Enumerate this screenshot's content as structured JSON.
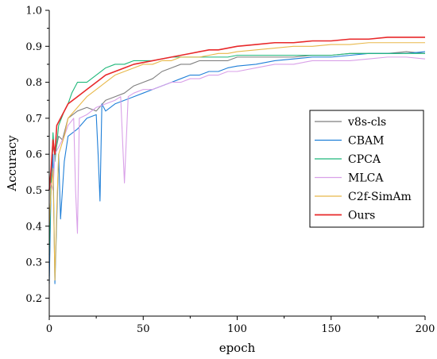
{
  "chart_data": {
    "type": "line",
    "title": "",
    "xlabel": "epoch",
    "ylabel": "Accuracy",
    "xlim": [
      0,
      200
    ],
    "ylim": [
      0.15,
      1.0
    ],
    "xticks": [
      0,
      50,
      100,
      150,
      200
    ],
    "yticks": [
      0.2,
      0.3,
      0.4,
      0.5,
      0.6,
      0.7,
      0.8,
      0.9,
      1.0
    ],
    "xtick_labels": [
      "0",
      "50",
      "100",
      "150",
      "200"
    ],
    "ytick_labels": [
      "0.2",
      "0.3",
      "0.4",
      "0.5",
      "0.6",
      "0.7",
      "0.8",
      "0.9",
      "1.0"
    ],
    "grid": false,
    "legend_position": "center-right",
    "series": [
      {
        "name": "v8s-cls",
        "color": "#7f7f7f",
        "points": [
          [
            0,
            0.26
          ],
          [
            1,
            0.55
          ],
          [
            2,
            0.62
          ],
          [
            3,
            0.6
          ],
          [
            5,
            0.65
          ],
          [
            7,
            0.64
          ],
          [
            10,
            0.7
          ],
          [
            15,
            0.72
          ],
          [
            20,
            0.73
          ],
          [
            25,
            0.72
          ],
          [
            30,
            0.75
          ],
          [
            35,
            0.76
          ],
          [
            40,
            0.77
          ],
          [
            45,
            0.79
          ],
          [
            50,
            0.8
          ],
          [
            55,
            0.81
          ],
          [
            60,
            0.83
          ],
          [
            65,
            0.84
          ],
          [
            70,
            0.85
          ],
          [
            75,
            0.85
          ],
          [
            80,
            0.86
          ],
          [
            85,
            0.86
          ],
          [
            90,
            0.86
          ],
          [
            95,
            0.86
          ],
          [
            100,
            0.87
          ],
          [
            110,
            0.87
          ],
          [
            120,
            0.87
          ],
          [
            130,
            0.87
          ],
          [
            140,
            0.875
          ],
          [
            150,
            0.875
          ],
          [
            160,
            0.88
          ],
          [
            170,
            0.88
          ],
          [
            180,
            0.88
          ],
          [
            190,
            0.885
          ],
          [
            200,
            0.88
          ]
        ]
      },
      {
        "name": "CBAM",
        "color": "#1f7fd8",
        "points": [
          [
            0,
            0.24
          ],
          [
            1,
            0.52
          ],
          [
            2,
            0.6
          ],
          [
            3,
            0.24
          ],
          [
            5,
            0.6
          ],
          [
            6,
            0.42
          ],
          [
            8,
            0.58
          ],
          [
            10,
            0.65
          ],
          [
            15,
            0.67
          ],
          [
            20,
            0.7
          ],
          [
            25,
            0.71
          ],
          [
            26,
            0.6
          ],
          [
            27,
            0.47
          ],
          [
            28,
            0.74
          ],
          [
            30,
            0.72
          ],
          [
            35,
            0.74
          ],
          [
            40,
            0.75
          ],
          [
            45,
            0.76
          ],
          [
            50,
            0.77
          ],
          [
            55,
            0.78
          ],
          [
            60,
            0.79
          ],
          [
            65,
            0.8
          ],
          [
            70,
            0.81
          ],
          [
            75,
            0.82
          ],
          [
            80,
            0.82
          ],
          [
            85,
            0.83
          ],
          [
            90,
            0.83
          ],
          [
            95,
            0.84
          ],
          [
            100,
            0.845
          ],
          [
            110,
            0.85
          ],
          [
            120,
            0.86
          ],
          [
            130,
            0.865
          ],
          [
            140,
            0.87
          ],
          [
            150,
            0.87
          ],
          [
            160,
            0.875
          ],
          [
            170,
            0.88
          ],
          [
            180,
            0.88
          ],
          [
            190,
            0.88
          ],
          [
            200,
            0.885
          ]
        ]
      },
      {
        "name": "CPCA",
        "color": "#1fb87a",
        "points": [
          [
            0,
            0.32
          ],
          [
            1,
            0.54
          ],
          [
            2,
            0.66
          ],
          [
            3,
            0.58
          ],
          [
            5,
            0.68
          ],
          [
            8,
            0.72
          ],
          [
            10,
            0.74
          ],
          [
            12,
            0.77
          ],
          [
            15,
            0.8
          ],
          [
            20,
            0.8
          ],
          [
            25,
            0.82
          ],
          [
            30,
            0.84
          ],
          [
            35,
            0.85
          ],
          [
            40,
            0.85
          ],
          [
            45,
            0.86
          ],
          [
            50,
            0.86
          ],
          [
            55,
            0.86
          ],
          [
            60,
            0.865
          ],
          [
            65,
            0.87
          ],
          [
            70,
            0.87
          ],
          [
            75,
            0.87
          ],
          [
            80,
            0.87
          ],
          [
            85,
            0.87
          ],
          [
            90,
            0.87
          ],
          [
            95,
            0.87
          ],
          [
            100,
            0.875
          ],
          [
            110,
            0.875
          ],
          [
            120,
            0.875
          ],
          [
            130,
            0.875
          ],
          [
            140,
            0.875
          ],
          [
            150,
            0.875
          ],
          [
            160,
            0.88
          ],
          [
            170,
            0.88
          ],
          [
            180,
            0.88
          ],
          [
            190,
            0.88
          ],
          [
            200,
            0.88
          ]
        ]
      },
      {
        "name": "MLCA",
        "color": "#d9a0e8",
        "points": [
          [
            0,
            0.5
          ],
          [
            1,
            0.52
          ],
          [
            2,
            0.5
          ],
          [
            3,
            0.6
          ],
          [
            5,
            0.62
          ],
          [
            8,
            0.65
          ],
          [
            10,
            0.68
          ],
          [
            13,
            0.7
          ],
          [
            14,
            0.5
          ],
          [
            15,
            0.38
          ],
          [
            16,
            0.7
          ],
          [
            20,
            0.71
          ],
          [
            25,
            0.73
          ],
          [
            30,
            0.74
          ],
          [
            35,
            0.75
          ],
          [
            38,
            0.76
          ],
          [
            40,
            0.52
          ],
          [
            42,
            0.76
          ],
          [
            45,
            0.77
          ],
          [
            50,
            0.78
          ],
          [
            55,
            0.78
          ],
          [
            60,
            0.79
          ],
          [
            65,
            0.8
          ],
          [
            70,
            0.8
          ],
          [
            75,
            0.81
          ],
          [
            80,
            0.81
          ],
          [
            85,
            0.82
          ],
          [
            90,
            0.82
          ],
          [
            95,
            0.83
          ],
          [
            100,
            0.83
          ],
          [
            110,
            0.84
          ],
          [
            120,
            0.85
          ],
          [
            130,
            0.85
          ],
          [
            140,
            0.86
          ],
          [
            150,
            0.86
          ],
          [
            160,
            0.86
          ],
          [
            170,
            0.865
          ],
          [
            180,
            0.87
          ],
          [
            190,
            0.87
          ],
          [
            200,
            0.865
          ]
        ]
      },
      {
        "name": "C2f-SimAm",
        "color": "#e8b84a",
        "points": [
          [
            0,
            0.4
          ],
          [
            1,
            0.5
          ],
          [
            2,
            0.56
          ],
          [
            3,
            0.25
          ],
          [
            4,
            0.45
          ],
          [
            5,
            0.6
          ],
          [
            8,
            0.65
          ],
          [
            10,
            0.7
          ],
          [
            15,
            0.73
          ],
          [
            20,
            0.76
          ],
          [
            25,
            0.78
          ],
          [
            30,
            0.8
          ],
          [
            35,
            0.82
          ],
          [
            40,
            0.83
          ],
          [
            45,
            0.84
          ],
          [
            50,
            0.85
          ],
          [
            55,
            0.85
          ],
          [
            60,
            0.86
          ],
          [
            65,
            0.86
          ],
          [
            70,
            0.87
          ],
          [
            75,
            0.87
          ],
          [
            80,
            0.87
          ],
          [
            85,
            0.875
          ],
          [
            90,
            0.88
          ],
          [
            95,
            0.88
          ],
          [
            100,
            0.885
          ],
          [
            110,
            0.89
          ],
          [
            120,
            0.895
          ],
          [
            130,
            0.9
          ],
          [
            140,
            0.9
          ],
          [
            150,
            0.905
          ],
          [
            160,
            0.905
          ],
          [
            170,
            0.91
          ],
          [
            180,
            0.91
          ],
          [
            190,
            0.91
          ],
          [
            200,
            0.91
          ]
        ]
      },
      {
        "name": "Ours",
        "color": "#e8282a",
        "points": [
          [
            0,
            0.5
          ],
          [
            1,
            0.56
          ],
          [
            2,
            0.64
          ],
          [
            3,
            0.6
          ],
          [
            4,
            0.68
          ],
          [
            5,
            0.69
          ],
          [
            8,
            0.72
          ],
          [
            10,
            0.74
          ],
          [
            15,
            0.76
          ],
          [
            20,
            0.78
          ],
          [
            25,
            0.8
          ],
          [
            30,
            0.82
          ],
          [
            35,
            0.83
          ],
          [
            40,
            0.84
          ],
          [
            45,
            0.85
          ],
          [
            50,
            0.855
          ],
          [
            55,
            0.86
          ],
          [
            60,
            0.865
          ],
          [
            65,
            0.87
          ],
          [
            70,
            0.875
          ],
          [
            75,
            0.88
          ],
          [
            80,
            0.885
          ],
          [
            85,
            0.89
          ],
          [
            90,
            0.89
          ],
          [
            95,
            0.895
          ],
          [
            100,
            0.9
          ],
          [
            110,
            0.905
          ],
          [
            120,
            0.91
          ],
          [
            130,
            0.91
          ],
          [
            140,
            0.915
          ],
          [
            150,
            0.915
          ],
          [
            160,
            0.92
          ],
          [
            170,
            0.92
          ],
          [
            180,
            0.925
          ],
          [
            190,
            0.925
          ],
          [
            200,
            0.925
          ]
        ]
      }
    ]
  }
}
